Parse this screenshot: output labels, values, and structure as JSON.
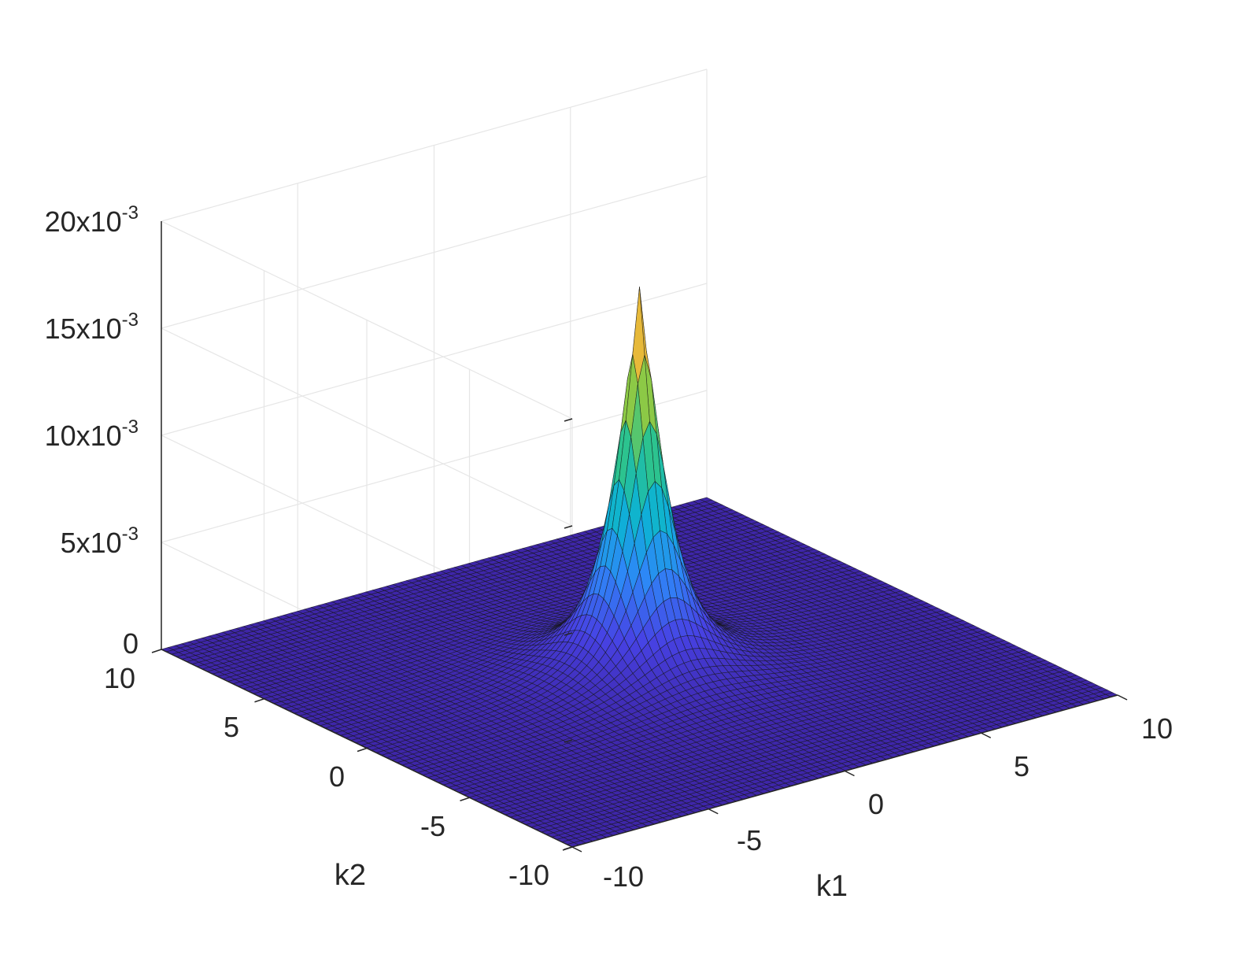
{
  "chart_data": {
    "type": "surface",
    "title": "",
    "xlabel": "k1",
    "ylabel": "k2",
    "zlabel": "",
    "xlim": [
      -10,
      10
    ],
    "ylim": [
      -10,
      10
    ],
    "zlim": [
      0,
      0.02
    ],
    "x_ticks": [
      "-10",
      "-5",
      "0",
      "5",
      "10"
    ],
    "y_ticks": [
      "-10",
      "-5",
      "0",
      "5",
      "10"
    ],
    "z_ticks": [
      {
        "mantissa": "0",
        "exponent": ""
      },
      {
        "mantissa": "5x10",
        "exponent": "-3"
      },
      {
        "mantissa": "10x10",
        "exponent": "-3"
      },
      {
        "mantissa": "15x10",
        "exponent": "-3"
      },
      {
        "mantissa": "20x10",
        "exponent": "-3"
      }
    ],
    "peak": {
      "k1": 0,
      "k2": 0,
      "value": 0.018
    },
    "grid": true,
    "colormap": "parula",
    "colormap_stops": [
      "#3e26a8",
      "#4742e4",
      "#2e87f7",
      "#0db2d5",
      "#2ac390",
      "#88ca46",
      "#e9b93a",
      "#f9d825"
    ]
  }
}
